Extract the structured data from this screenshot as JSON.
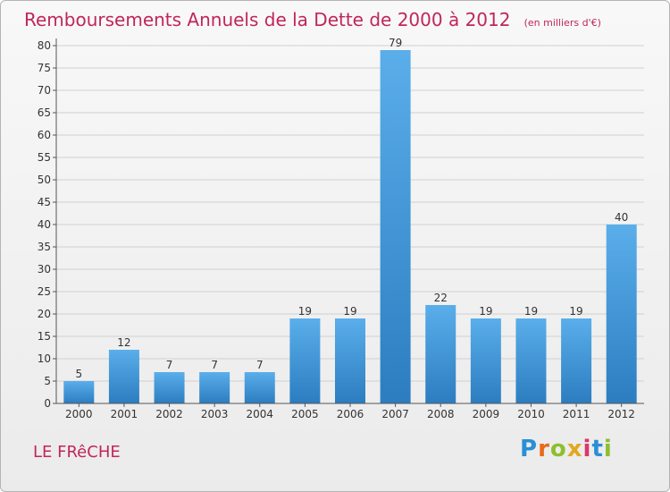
{
  "header": {
    "title": "Remboursements Annuels de la Dette de 2000 à 2012",
    "unit": "(en milliers d'€)"
  },
  "footer": {
    "commune": "LE FRêCHE",
    "logo": "Proxiti"
  },
  "colors": {
    "bar_light": "#5aaeea",
    "bar_dark": "#2c7dc0",
    "accent": "#c0265a",
    "grid": "#d0d0d0",
    "axis": "#555555"
  },
  "chart_data": {
    "type": "bar",
    "categories": [
      "2000",
      "2001",
      "2002",
      "2003",
      "2004",
      "2005",
      "2006",
      "2007",
      "2008",
      "2009",
      "2010",
      "2011",
      "2012"
    ],
    "values": [
      5,
      12,
      7,
      7,
      7,
      19,
      19,
      79,
      22,
      19,
      19,
      19,
      40
    ],
    "title": "Remboursements Annuels de la Dette de 2000 à 2012",
    "ylim": [
      0,
      80
    ],
    "yticks": [
      0,
      5,
      10,
      15,
      20,
      25,
      30,
      35,
      40,
      45,
      50,
      55,
      60,
      65,
      70,
      75,
      80
    ],
    "grid": true,
    "data_labels": true
  }
}
